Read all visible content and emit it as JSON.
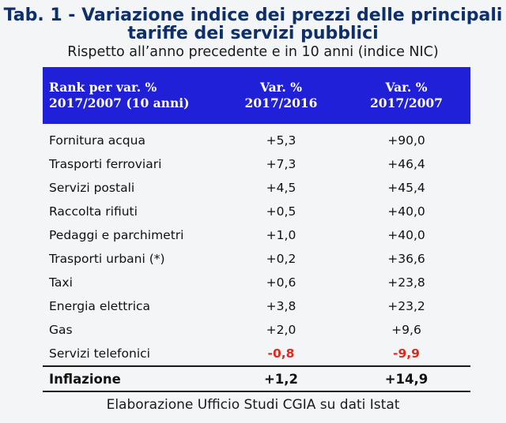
{
  "title": {
    "line1": "Tab. 1 - Variazione indice dei prezzi delle principali",
    "line2": "tariffe dei servizi pubblici"
  },
  "subtitle": "Rispetto all’anno precedente e in 10 anni (indice NIC)",
  "headers": {
    "col1_line1": "Rank per var. %",
    "col1_line2": "2017/2007 (10 anni)",
    "col2_line1": "Var. %",
    "col2_line2": "2017/2016",
    "col3_line1": "Var. %",
    "col3_line2": "2017/2007"
  },
  "rows": [
    {
      "label": "Fornitura acqua",
      "var_1y": "+5,3",
      "var_10y": "+90,0"
    },
    {
      "label": "Trasporti ferroviari",
      "var_1y": "+7,3",
      "var_10y": "+46,4"
    },
    {
      "label": "Servizi postali",
      "var_1y": "+4,5",
      "var_10y": "+45,4"
    },
    {
      "label": "Raccolta rifiuti",
      "var_1y": "+0,5",
      "var_10y": "+40,0"
    },
    {
      "label": "Pedaggi e parchimetri",
      "var_1y": "+1,0",
      "var_10y": "+40,0"
    },
    {
      "label": "Trasporti urbani (*)",
      "var_1y": "+0,2",
      "var_10y": "+36,6"
    },
    {
      "label": "Taxi",
      "var_1y": "+0,6",
      "var_10y": "+23,8"
    },
    {
      "label": "Energia elettrica",
      "var_1y": "+3,8",
      "var_10y": "+23,2"
    },
    {
      "label": "Gas",
      "var_1y": "+2,0",
      "var_10y": "+9,6"
    },
    {
      "label": "Servizi telefonici",
      "var_1y": "-0,8",
      "var_10y": "-9,9"
    }
  ],
  "total": {
    "label": "Inflazione",
    "var_1y": "+1,2",
    "var_10y": "+14,9"
  },
  "footer": "Elaborazione Ufficio Studi CGIA su dati Istat",
  "colors": {
    "title": "#0d2f6b",
    "header_bg": "#2020d8",
    "negative": "#e0281c",
    "background": "#f3f5f7"
  },
  "chart_data": {
    "type": "table",
    "title": "Tab. 1 - Variazione indice dei prezzi delle principali tariffe dei servizi pubblici",
    "subtitle": "Rispetto all’anno precedente e in 10 anni (indice NIC)",
    "columns": [
      "Rank per var. % 2017/2007 (10 anni)",
      "Var. % 2017/2016",
      "Var. % 2017/2007"
    ],
    "categories": [
      "Fornitura acqua",
      "Trasporti ferroviari",
      "Servizi postali",
      "Raccolta rifiuti",
      "Pedaggi e parchimetri",
      "Trasporti urbani (*)",
      "Taxi",
      "Energia elettrica",
      "Gas",
      "Servizi telefonici",
      "Inflazione"
    ],
    "series": [
      {
        "name": "Var. % 2017/2016",
        "values": [
          5.3,
          7.3,
          4.5,
          0.5,
          1.0,
          0.2,
          0.6,
          3.8,
          2.0,
          -0.8,
          1.2
        ]
      },
      {
        "name": "Var. % 2017/2007",
        "values": [
          90.0,
          46.4,
          45.4,
          40.0,
          40.0,
          36.6,
          23.8,
          23.2,
          9.6,
          -9.9,
          14.9
        ]
      }
    ]
  }
}
